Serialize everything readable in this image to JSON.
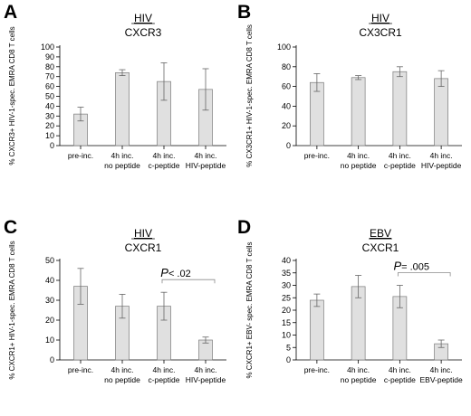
{
  "chart_data": [
    {
      "type": "bar",
      "panel": "A",
      "title_virus": "HIV",
      "title_marker": "CXCR3",
      "ylabel": "% CXCR3+ HIV-1-spec. EMRA CD8 T cells",
      "ylim": [
        0,
        100
      ],
      "yticks": [
        0,
        10,
        20,
        30,
        40,
        50,
        60,
        70,
        80,
        90,
        100
      ],
      "categories": [
        [
          "pre-inc."
        ],
        [
          "4h inc.",
          "no peptide"
        ],
        [
          "4h inc.",
          "c-peptide"
        ],
        [
          "4h inc.",
          "HIV-peptide"
        ]
      ],
      "values": [
        32,
        74,
        65,
        57
      ],
      "errors": [
        7,
        3,
        19,
        21
      ],
      "annotation": null
    },
    {
      "type": "bar",
      "panel": "B",
      "title_virus": "HIV",
      "title_marker": "CX3CR1",
      "ylabel": "% CX3CR1+ HIV-1-spec. EMRA CD8 T cells",
      "ylim": [
        0,
        100
      ],
      "yticks": [
        0,
        20,
        40,
        60,
        80,
        100
      ],
      "categories": [
        [
          "pre-inc."
        ],
        [
          "4h inc.",
          "no peptide"
        ],
        [
          "4h inc.",
          "c-peptide"
        ],
        [
          "4h inc.",
          "HIV-peptide"
        ]
      ],
      "values": [
        64,
        69,
        75,
        68
      ],
      "errors": [
        9,
        2,
        5,
        8
      ],
      "annotation": null
    },
    {
      "type": "bar",
      "panel": "C",
      "title_virus": "HIV",
      "title_marker": "CXCR1",
      "ylabel": "% CXCR1+ HIV-1-spec. EMRA CD8 T cells",
      "ylim": [
        0,
        50
      ],
      "yticks": [
        0,
        10,
        20,
        30,
        40,
        50
      ],
      "categories": [
        [
          "pre-inc."
        ],
        [
          "4h inc.",
          "no peptide"
        ],
        [
          "4h inc.",
          "c-peptide"
        ],
        [
          "4h inc.",
          "HIV-peptide"
        ]
      ],
      "values": [
        37,
        27,
        27,
        10
      ],
      "errors": [
        9,
        6,
        7,
        1.5
      ],
      "annotation": {
        "p_letter": "P",
        "p_value": "< .02",
        "from": 2,
        "to": 3
      }
    },
    {
      "type": "bar",
      "panel": "D",
      "title_virus": "EBV",
      "title_marker": "CXCR1",
      "ylabel": "% CXCR1+ EBV- spec. EMRA CD8 T cells",
      "ylim": [
        0,
        40
      ],
      "yticks": [
        0,
        5,
        10,
        15,
        20,
        25,
        30,
        35,
        40
      ],
      "categories": [
        [
          "pre-inc."
        ],
        [
          "4h inc.",
          "no peptide"
        ],
        [
          "4h inc.",
          "c-peptide"
        ],
        [
          "4h inc.",
          "EBV-peptide"
        ]
      ],
      "values": [
        24,
        29.5,
        25.5,
        6.5
      ],
      "errors": [
        2.5,
        4.5,
        4.5,
        1.5
      ],
      "annotation": {
        "p_letter": "P",
        "p_value": "= .005",
        "from": 2,
        "to": 3
      }
    }
  ],
  "colors": {
    "bar_fill": "#e0e0e0",
    "bar_stroke": "#7a7a7a",
    "axis": "#000000",
    "error": "#666666"
  }
}
